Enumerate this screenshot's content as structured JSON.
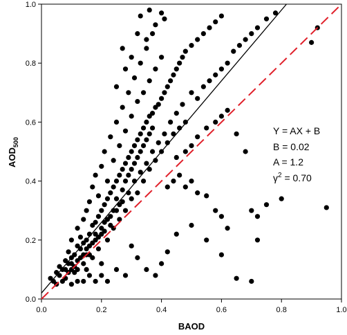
{
  "chart_data": {
    "type": "scatter",
    "title": "",
    "xlabel": "BAOD",
    "ylabel_main": "AOD",
    "ylabel_sub": "500",
    "xlim": [
      0,
      1.0
    ],
    "ylim": [
      0,
      1.0
    ],
    "x_ticks": [
      "0.0",
      "0.2",
      "0.4",
      "0.6",
      "0.8",
      "1.0"
    ],
    "y_ticks": [
      "0.0",
      "0.2",
      "0.4",
      "0.6",
      "0.8",
      "1.0"
    ],
    "x_tick_values": [
      0,
      0.2,
      0.4,
      0.6,
      0.8,
      1.0
    ],
    "y_tick_values": [
      0,
      0.2,
      0.4,
      0.6,
      0.8,
      1.0
    ],
    "grid": false,
    "marker_color": "#000000",
    "fit_line": {
      "slope": 1.2,
      "intercept": 0.02,
      "color": "#000000",
      "style": "solid"
    },
    "one_to_one_line": {
      "slope": 1,
      "intercept": 0,
      "color": "#e0202a",
      "style": "dashed"
    },
    "annotation": {
      "line1": "Y = AX + B",
      "line2": "B = 0.02",
      "line3": "A = 1.2",
      "line4_prefix": "γ",
      "line4_sup": "2",
      "line4_suffix": " = 0.70"
    },
    "points": [
      [
        0.03,
        0.07
      ],
      [
        0.04,
        0.06
      ],
      [
        0.05,
        0.05
      ],
      [
        0.05,
        0.09
      ],
      [
        0.06,
        0.08
      ],
      [
        0.06,
        0.11
      ],
      [
        0.07,
        0.06
      ],
      [
        0.07,
        0.1
      ],
      [
        0.08,
        0.13
      ],
      [
        0.08,
        0.07
      ],
      [
        0.09,
        0.12
      ],
      [
        0.09,
        0.16
      ],
      [
        0.1,
        0.1
      ],
      [
        0.1,
        0.14
      ],
      [
        0.1,
        0.2
      ],
      [
        0.11,
        0.15
      ],
      [
        0.11,
        0.09
      ],
      [
        0.12,
        0.18
      ],
      [
        0.12,
        0.13
      ],
      [
        0.12,
        0.24
      ],
      [
        0.13,
        0.17
      ],
      [
        0.13,
        0.21
      ],
      [
        0.14,
        0.12
      ],
      [
        0.14,
        0.19
      ],
      [
        0.14,
        0.27
      ],
      [
        0.15,
        0.2
      ],
      [
        0.15,
        0.15
      ],
      [
        0.15,
        0.3
      ],
      [
        0.16,
        0.22
      ],
      [
        0.16,
        0.18
      ],
      [
        0.16,
        0.33
      ],
      [
        0.17,
        0.25
      ],
      [
        0.17,
        0.14
      ],
      [
        0.17,
        0.38
      ],
      [
        0.18,
        0.26
      ],
      [
        0.18,
        0.2
      ],
      [
        0.18,
        0.42
      ],
      [
        0.19,
        0.28
      ],
      [
        0.19,
        0.17
      ],
      [
        0.19,
        0.35
      ],
      [
        0.2,
        0.3
      ],
      [
        0.2,
        0.22
      ],
      [
        0.2,
        0.45
      ],
      [
        0.2,
        0.12
      ],
      [
        0.21,
        0.32
      ],
      [
        0.21,
        0.26
      ],
      [
        0.21,
        0.5
      ],
      [
        0.22,
        0.34
      ],
      [
        0.22,
        0.2
      ],
      [
        0.22,
        0.4
      ],
      [
        0.23,
        0.36
      ],
      [
        0.23,
        0.28
      ],
      [
        0.23,
        0.55
      ],
      [
        0.24,
        0.38
      ],
      [
        0.24,
        0.24
      ],
      [
        0.24,
        0.47
      ],
      [
        0.25,
        0.4
      ],
      [
        0.25,
        0.3
      ],
      [
        0.25,
        0.6
      ],
      [
        0.26,
        0.42
      ],
      [
        0.26,
        0.27
      ],
      [
        0.26,
        0.52
      ],
      [
        0.27,
        0.44
      ],
      [
        0.27,
        0.33
      ],
      [
        0.27,
        0.65
      ],
      [
        0.28,
        0.46
      ],
      [
        0.28,
        0.3
      ],
      [
        0.28,
        0.57
      ],
      [
        0.29,
        0.48
      ],
      [
        0.29,
        0.36
      ],
      [
        0.29,
        0.7
      ],
      [
        0.3,
        0.5
      ],
      [
        0.3,
        0.34
      ],
      [
        0.3,
        0.62
      ],
      [
        0.31,
        0.52
      ],
      [
        0.31,
        0.4
      ],
      [
        0.31,
        0.75
      ],
      [
        0.32,
        0.54
      ],
      [
        0.32,
        0.36
      ],
      [
        0.32,
        0.67
      ],
      [
        0.33,
        0.56
      ],
      [
        0.33,
        0.43
      ],
      [
        0.33,
        0.8
      ],
      [
        0.34,
        0.58
      ],
      [
        0.34,
        0.4
      ],
      [
        0.34,
        0.7
      ],
      [
        0.35,
        0.6
      ],
      [
        0.35,
        0.46
      ],
      [
        0.35,
        0.85
      ],
      [
        0.36,
        0.62
      ],
      [
        0.36,
        0.44
      ],
      [
        0.36,
        0.74
      ],
      [
        0.37,
        0.63
      ],
      [
        0.37,
        0.5
      ],
      [
        0.37,
        0.9
      ],
      [
        0.38,
        0.65
      ],
      [
        0.38,
        0.47
      ],
      [
        0.38,
        0.78
      ],
      [
        0.39,
        0.66
      ],
      [
        0.39,
        0.53
      ],
      [
        0.4,
        0.68
      ],
      [
        0.4,
        0.5
      ],
      [
        0.4,
        0.82
      ],
      [
        0.41,
        0.7
      ],
      [
        0.41,
        0.56
      ],
      [
        0.41,
        0.95
      ],
      [
        0.42,
        0.72
      ],
      [
        0.42,
        0.53
      ],
      [
        0.43,
        0.74
      ],
      [
        0.43,
        0.6
      ],
      [
        0.44,
        0.76
      ],
      [
        0.44,
        0.56
      ],
      [
        0.45,
        0.78
      ],
      [
        0.45,
        0.63
      ],
      [
        0.46,
        0.8
      ],
      [
        0.46,
        0.58
      ],
      [
        0.47,
        0.82
      ],
      [
        0.47,
        0.66
      ],
      [
        0.48,
        0.84
      ],
      [
        0.48,
        0.6
      ],
      [
        0.5,
        0.86
      ],
      [
        0.5,
        0.7
      ],
      [
        0.52,
        0.88
      ],
      [
        0.52,
        0.68
      ],
      [
        0.54,
        0.9
      ],
      [
        0.54,
        0.72
      ],
      [
        0.56,
        0.92
      ],
      [
        0.56,
        0.74
      ],
      [
        0.58,
        0.94
      ],
      [
        0.58,
        0.76
      ],
      [
        0.6,
        0.78
      ],
      [
        0.6,
        0.96
      ],
      [
        0.62,
        0.8
      ],
      [
        0.64,
        0.84
      ],
      [
        0.66,
        0.86
      ],
      [
        0.68,
        0.88
      ],
      [
        0.7,
        0.9
      ],
      [
        0.72,
        0.92
      ],
      [
        0.75,
        0.95
      ],
      [
        0.78,
        0.97
      ],
      [
        0.45,
        0.48
      ],
      [
        0.48,
        0.5
      ],
      [
        0.5,
        0.52
      ],
      [
        0.52,
        0.55
      ],
      [
        0.55,
        0.58
      ],
      [
        0.58,
        0.6
      ],
      [
        0.6,
        0.62
      ],
      [
        0.62,
        0.64
      ],
      [
        0.65,
        0.56
      ],
      [
        0.68,
        0.5
      ],
      [
        0.42,
        0.38
      ],
      [
        0.44,
        0.4
      ],
      [
        0.46,
        0.42
      ],
      [
        0.48,
        0.38
      ],
      [
        0.5,
        0.4
      ],
      [
        0.52,
        0.36
      ],
      [
        0.55,
        0.35
      ],
      [
        0.58,
        0.3
      ],
      [
        0.6,
        0.28
      ],
      [
        0.62,
        0.24
      ],
      [
        0.3,
        0.18
      ],
      [
        0.32,
        0.14
      ],
      [
        0.35,
        0.1
      ],
      [
        0.38,
        0.08
      ],
      [
        0.4,
        0.12
      ],
      [
        0.42,
        0.16
      ],
      [
        0.45,
        0.22
      ],
      [
        0.5,
        0.25
      ],
      [
        0.55,
        0.2
      ],
      [
        0.6,
        0.15
      ],
      [
        0.25,
        0.1
      ],
      [
        0.28,
        0.08
      ],
      [
        0.22,
        0.06
      ],
      [
        0.2,
        0.08
      ],
      [
        0.18,
        0.06
      ],
      [
        0.16,
        0.08
      ],
      [
        0.14,
        0.06
      ],
      [
        0.12,
        0.06
      ],
      [
        0.15,
        0.1
      ],
      [
        0.1,
        0.05
      ],
      [
        0.7,
        0.3
      ],
      [
        0.72,
        0.28
      ],
      [
        0.75,
        0.32
      ],
      [
        0.8,
        0.34
      ],
      [
        0.65,
        0.07
      ],
      [
        0.7,
        0.06
      ],
      [
        0.95,
        0.31
      ],
      [
        0.9,
        0.87
      ],
      [
        0.92,
        0.92
      ],
      [
        0.72,
        0.2
      ],
      [
        0.35,
        0.88
      ],
      [
        0.38,
        0.93
      ],
      [
        0.33,
        0.96
      ],
      [
        0.36,
        0.98
      ],
      [
        0.3,
        0.82
      ],
      [
        0.28,
        0.78
      ],
      [
        0.27,
        0.85
      ],
      [
        0.32,
        0.9
      ],
      [
        0.4,
        0.97
      ],
      [
        0.25,
        0.72
      ],
      [
        0.08,
        0.1
      ],
      [
        0.09,
        0.09
      ],
      [
        0.1,
        0.12
      ],
      [
        0.11,
        0.11
      ],
      [
        0.12,
        0.1
      ],
      [
        0.13,
        0.14
      ],
      [
        0.14,
        0.15
      ],
      [
        0.15,
        0.17
      ],
      [
        0.16,
        0.15
      ],
      [
        0.17,
        0.19
      ],
      [
        0.18,
        0.22
      ],
      [
        0.19,
        0.21
      ],
      [
        0.2,
        0.24
      ],
      [
        0.21,
        0.23
      ],
      [
        0.22,
        0.27
      ],
      [
        0.23,
        0.25
      ],
      [
        0.24,
        0.3
      ],
      [
        0.25,
        0.34
      ],
      [
        0.26,
        0.32
      ],
      [
        0.27,
        0.37
      ],
      [
        0.28,
        0.4
      ],
      [
        0.29,
        0.42
      ],
      [
        0.3,
        0.44
      ],
      [
        0.31,
        0.46
      ],
      [
        0.32,
        0.48
      ],
      [
        0.33,
        0.5
      ],
      [
        0.34,
        0.52
      ],
      [
        0.35,
        0.54
      ],
      [
        0.36,
        0.56
      ],
      [
        0.37,
        0.58
      ]
    ]
  }
}
